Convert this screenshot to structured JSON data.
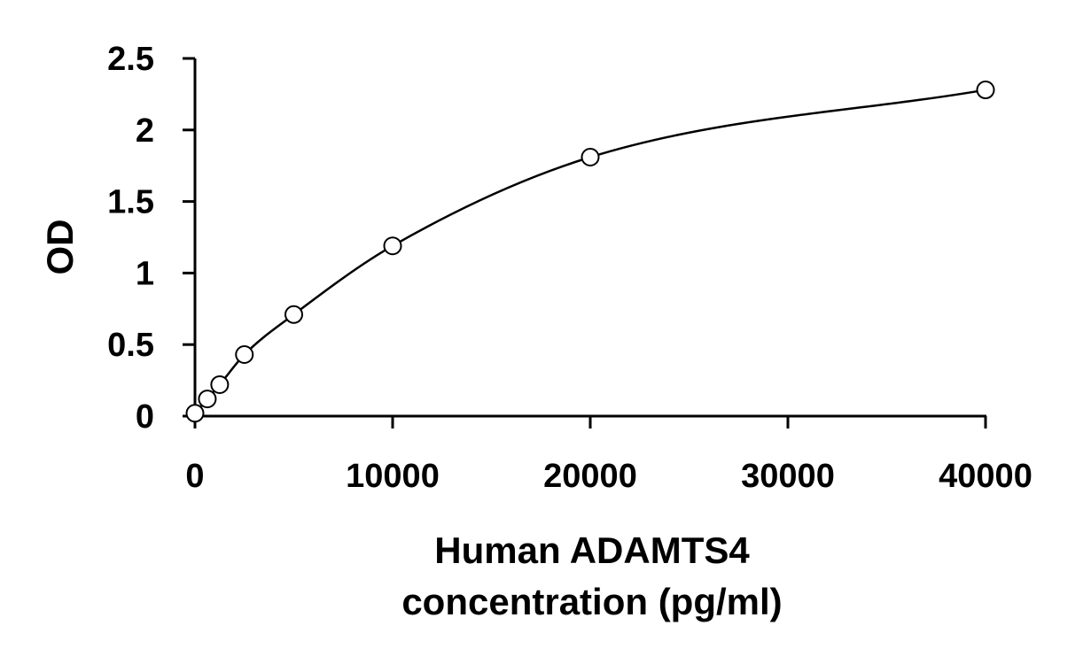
{
  "chart_data": {
    "type": "scatter",
    "title": "",
    "xlabel": [
      "Human ADAMTS4",
      "concentration (pg/ml)"
    ],
    "ylabel": "OD",
    "xlim": [
      0,
      40000
    ],
    "ylim": [
      0,
      2.5
    ],
    "x_ticks": [
      0,
      10000,
      20000,
      30000,
      40000
    ],
    "x_tick_labels": [
      "0",
      "10000",
      "20000",
      "30000",
      "40000"
    ],
    "y_ticks": [
      0,
      0.5,
      1,
      1.5,
      2,
      2.5
    ],
    "y_tick_labels": [
      "0",
      "0.5",
      "1",
      "1.5",
      "2",
      "2.5"
    ],
    "grid": false,
    "legend": "none",
    "series": [
      {
        "marker": "open-circle",
        "x": [
          0,
          625,
          1250,
          2500,
          5000,
          10000,
          20000,
          40000
        ],
        "y": [
          0.02,
          0.12,
          0.22,
          0.43,
          0.71,
          1.19,
          1.81,
          2.28
        ]
      }
    ],
    "fit_curve": {
      "style": "smooth-line",
      "x": [
        0,
        625,
        1250,
        2500,
        5000,
        10000,
        20000,
        40000
      ],
      "y": [
        0.02,
        0.12,
        0.22,
        0.43,
        0.71,
        1.19,
        1.81,
        2.28
      ]
    },
    "colors": {
      "axis": "#000000",
      "marker_stroke": "#000000",
      "marker_fill": "#ffffff",
      "curve": "#000000"
    }
  }
}
